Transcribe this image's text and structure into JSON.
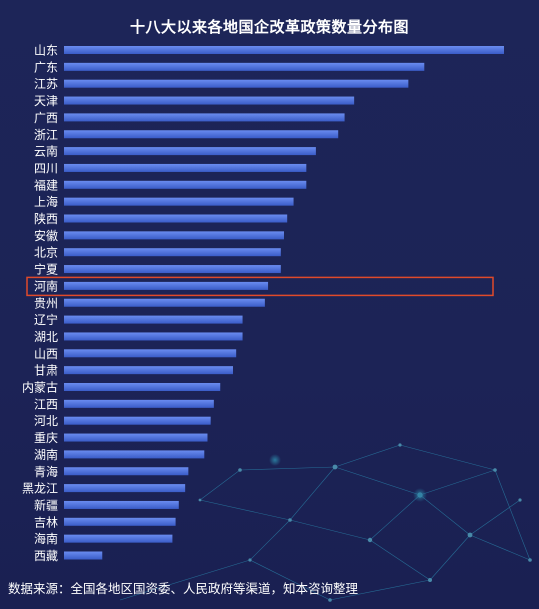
{
  "chart_data": {
    "type": "bar",
    "orientation": "horizontal",
    "title": "十八大以来各地国企改革政策数量分布图",
    "categories": [
      "山东",
      "广东",
      "江苏",
      "天津",
      "广西",
      "浙江",
      "云南",
      "四川",
      "福建",
      "上海",
      "陕西",
      "安徽",
      "北京",
      "宁夏",
      "河南",
      "贵州",
      "辽宁",
      "湖北",
      "山西",
      "甘肃",
      "内蒙古",
      "江西",
      "河北",
      "重庆",
      "湖南",
      "青海",
      "黑龙江",
      "新疆",
      "吉林",
      "海南",
      "西藏"
    ],
    "values": [
      138,
      113,
      108,
      91,
      88,
      86,
      79,
      76,
      76,
      72,
      70,
      69,
      68,
      68,
      64,
      63,
      56,
      56,
      54,
      53,
      49,
      47,
      46,
      45,
      44,
      39,
      38,
      36,
      35,
      34,
      12
    ],
    "highlight": "河南",
    "highlight_color": "#e04a2a",
    "bar_color": "#4a6fd8",
    "grid": false,
    "legend": "none"
  },
  "source_note": "数据来源：全国各地区国资委、人民政府等渠道，知本咨询整理"
}
